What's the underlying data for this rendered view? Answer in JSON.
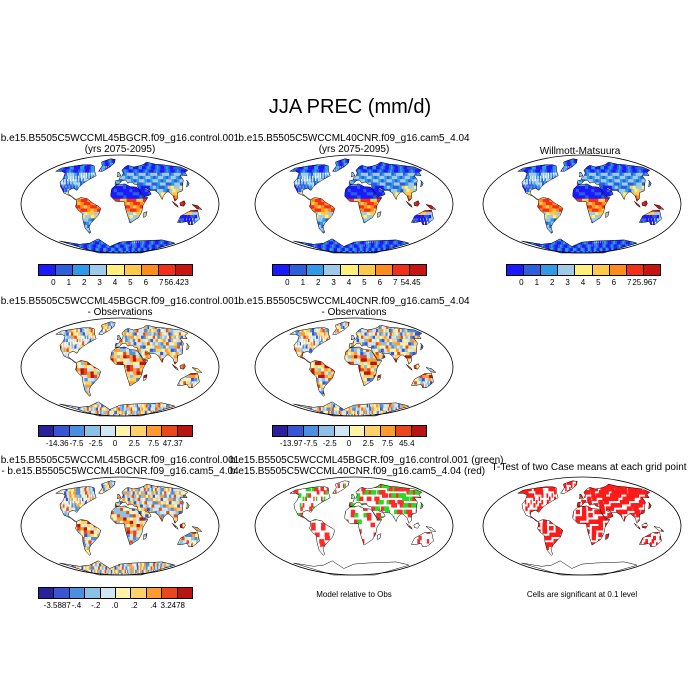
{
  "title": "JJA PREC (mm/d)",
  "panels": [
    {
      "id": "p1",
      "title1": "b.e15.B5505C5WCCML45BGCR.f09_g16.control.001",
      "title2": "(yrs 2075-2095)",
      "kind": "abs"
    },
    {
      "id": "p2",
      "title1": "b.e15.B5505C5WCCML40CNR.f09_g16.cam5_4.04",
      "title2": "(yrs 2075-2095)",
      "kind": "abs"
    },
    {
      "id": "p3",
      "title1": "",
      "title2": "Willmott-Matsuura",
      "kind": "abs"
    },
    {
      "id": "p4",
      "title1": "b.e15.B5505C5WCCML45BGCR.f09_g16.control.001",
      "title2": "- Observations",
      "kind": "diff"
    },
    {
      "id": "p5",
      "title1": "b.e15.B5505C5WCCML40CNR.f09_g16.cam5_4.04",
      "title2": "- Observations",
      "kind": "diff"
    },
    {
      "id": "p6",
      "title1": "b.e15.B5505C5WCCML45BGCR.f09_g16.control.001",
      "title2": "- b.e15.B5505C5WCCML40CNR.f09_g16.cam5_4.04",
      "kind": "diff2"
    },
    {
      "id": "p7",
      "title1": "b.e15.B5505C5WCCML45BGCR.f09_g16.control.001 (green)",
      "title2": "b.e15.B5505C5WCCML40CNR.f09_g16.cam5_4.04 (red)",
      "kind": "gr"
    },
    {
      "id": "p8",
      "title1": "",
      "title2": "T-Test of two Case means at each grid point",
      "kind": "red"
    }
  ],
  "colorbars": {
    "c1": {
      "ticks": [
        "0",
        "1",
        "2",
        "3",
        "4",
        "5",
        "6",
        "7",
        "56.423"
      ]
    },
    "c2": {
      "ticks": [
        "0",
        "1",
        "2",
        "3",
        "4",
        "5",
        "6",
        "7",
        "54.45"
      ]
    },
    "c3": {
      "ticks": [
        "0",
        "1",
        "2",
        "3",
        "4",
        "5",
        "6",
        "7",
        "25.967"
      ]
    },
    "c4": {
      "ticks": [
        "-14.36",
        "-7.5",
        "-2.5",
        "0",
        "2.5",
        "7.5",
        "47.37"
      ]
    },
    "c5": {
      "ticks": [
        "-13.97",
        "-7.5",
        "-2.5",
        "0",
        "2.5",
        "7.5",
        "45.4"
      ]
    },
    "c6": {
      "ticks": [
        "-3.5887",
        "-.4",
        "-.2",
        ".0",
        ".2",
        ".4",
        "3.2478"
      ]
    }
  },
  "notes": {
    "model_relative": "Model relative to Obs",
    "significance": "Cells are significant at 0.1 level"
  },
  "colors": {
    "abs": [
      "#1a1aff",
      "#2c5fdc",
      "#2f9be8",
      "#9fcbe8",
      "#fff07a",
      "#ffc94a",
      "#ff8c1a",
      "#f52e1a",
      "#c91414"
    ],
    "diff": [
      "#2d1e9c",
      "#3a55d4",
      "#4a8fe0",
      "#8cc1e6",
      "#cfe6f3",
      "#fff3a8",
      "#ffd166",
      "#ff9a2e",
      "#e8481c",
      "#b81414"
    ]
  }
}
